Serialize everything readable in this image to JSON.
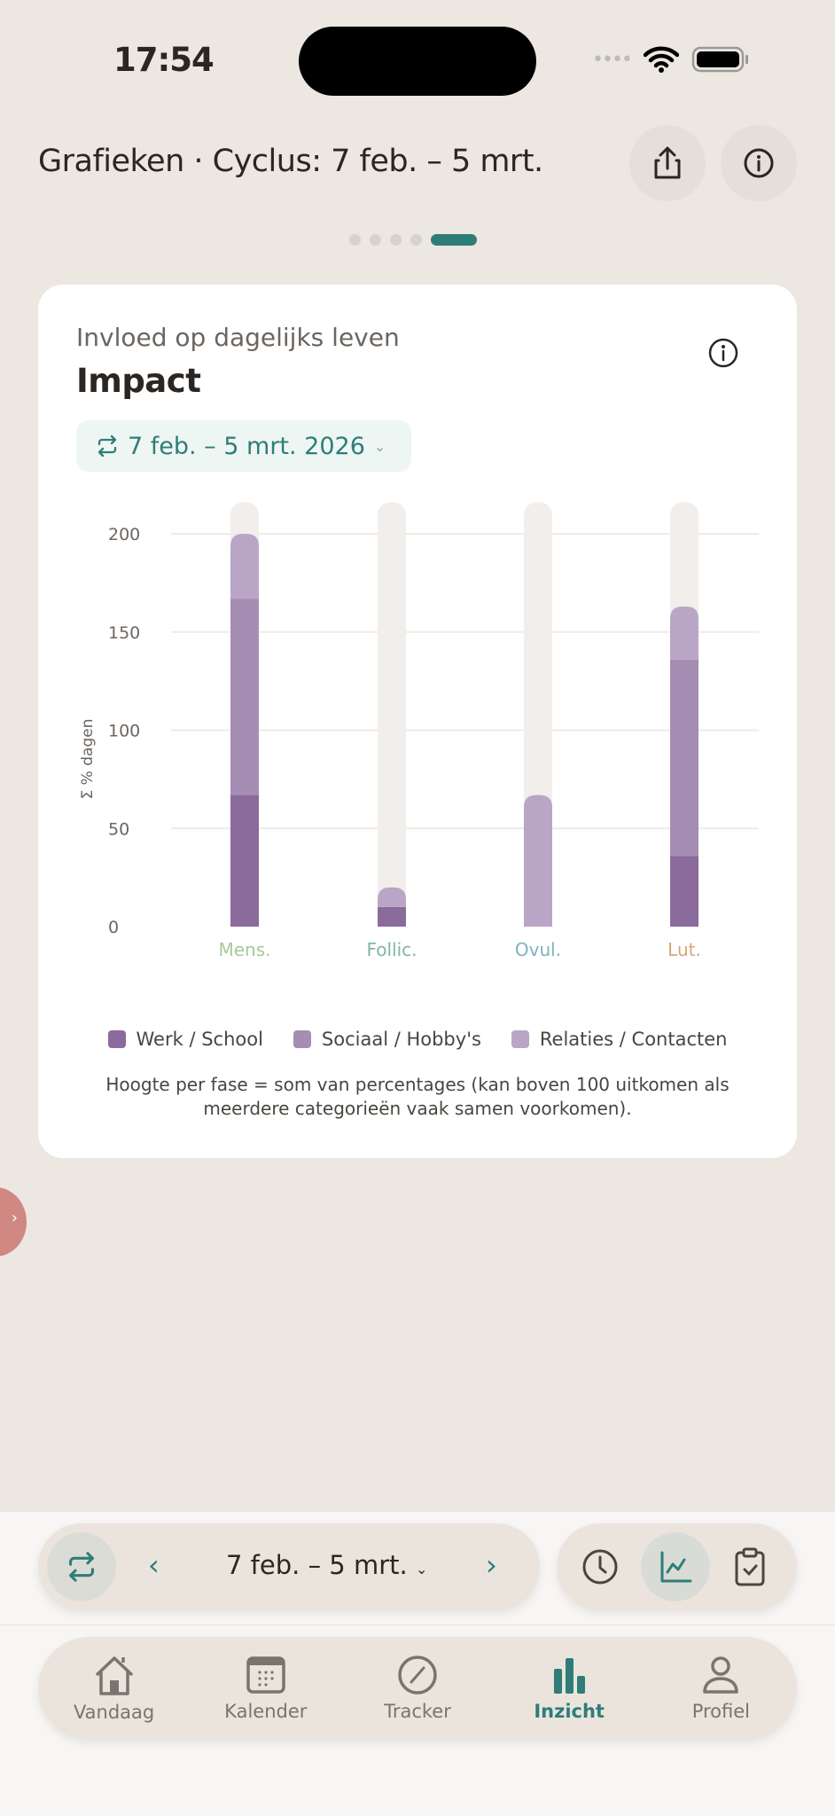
{
  "status_bar": {
    "time": "17:54"
  },
  "header": {
    "title": "Grafieken · Cyclus: 7 feb. – 5 mrt.",
    "share_icon": "share-icon",
    "info_icon": "info-icon"
  },
  "pager": {
    "count": 5,
    "active": 4
  },
  "card": {
    "subtitle": "Invloed op dagelijks leven",
    "title": "Impact",
    "range_label": "7 feb. – 5 mrt. 2026",
    "legend": [
      {
        "label": "Werk / School",
        "color": "#8b6a9c"
      },
      {
        "label": "Sociaal / Hobby's",
        "color": "#a58db3"
      },
      {
        "label": "Relaties / Contacten",
        "color": "#b9a6c6"
      }
    ],
    "note": "Hoogte per fase = som van percentages (kan boven 100 uitkomen als meerdere categorieën vaak samen voorkomen)."
  },
  "chart_data": {
    "type": "bar",
    "stacked": true,
    "ylabel": "Σ % dagen",
    "ylim": [
      0,
      216
    ],
    "yticks": [
      "0",
      "50",
      "100",
      "150",
      "200"
    ],
    "grid": true,
    "categories": [
      "Mens.",
      "Follic.",
      "Ovul.",
      "Lut."
    ],
    "category_colors": [
      "#a9c99a",
      "#7fb5a8",
      "#7fb3bd",
      "#d4a774"
    ],
    "series": [
      {
        "name": "Werk / School",
        "values": [
          67,
          10,
          0,
          36
        ],
        "color": "#8b6a9c"
      },
      {
        "name": "Sociaal / Hobby's",
        "values": [
          100,
          0,
          0,
          100
        ],
        "color": "#a58db3"
      },
      {
        "name": "Relaties / Contacten",
        "values": [
          33,
          10,
          67,
          27
        ],
        "color": "#b9a6c6"
      }
    ]
  },
  "toolbar": {
    "range": "7 feb. – 5 mrt."
  },
  "tabs": [
    {
      "label": "Vandaag"
    },
    {
      "label": "Kalender"
    },
    {
      "label": "Tracker"
    },
    {
      "label": "Inzicht",
      "active": true
    },
    {
      "label": "Profiel"
    }
  ],
  "colors": {
    "accent": "#2e7d78",
    "background": "#ede7e1"
  }
}
